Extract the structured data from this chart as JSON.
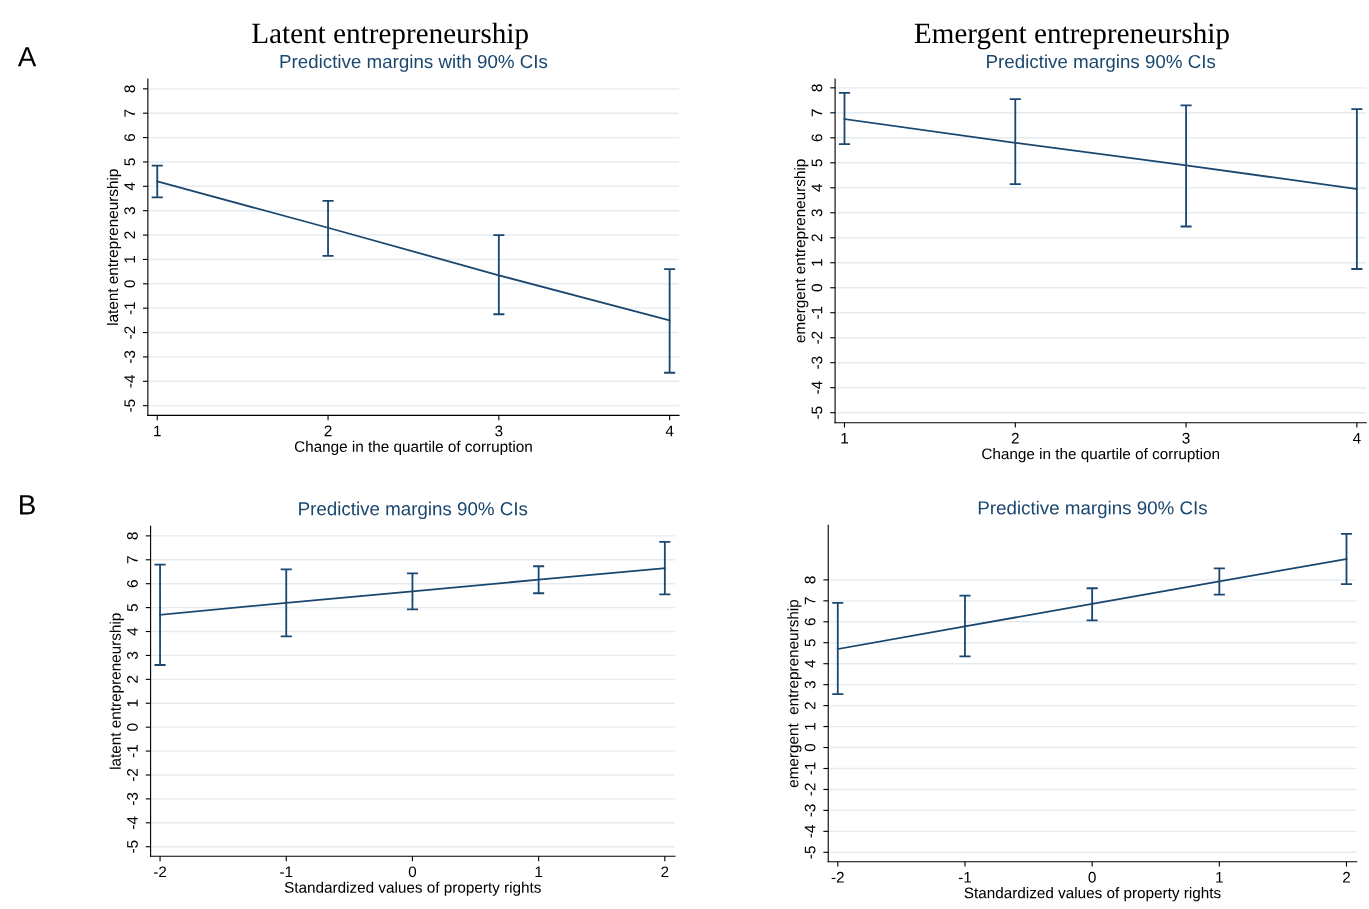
{
  "chart_data": [
    {
      "type": "line",
      "title": "Predictive margins with 90% CIs",
      "xlabel": "Change in the quartile of corruption",
      "ylabel": "latent entrepreneurship",
      "annotations": [
        "Latent entrepreneurship",
        "A"
      ],
      "x": [
        1,
        2,
        3,
        4
      ],
      "xlim": [
        0.945,
        4.055
      ],
      "xticks": [
        1,
        2,
        3,
        4
      ],
      "ylim": [
        -5.4,
        8.4
      ],
      "yticks": [
        -5,
        -4,
        -3,
        -2,
        -1,
        0,
        1,
        2,
        3,
        4,
        5,
        6,
        7,
        8
      ],
      "grid": "y",
      "marker": "none",
      "line_style": "solid",
      "series": [
        {
          "color": "#1a476f",
          "values": [
            4.2,
            2.3,
            0.35,
            -1.5
          ],
          "errors": [
            [
              3.55,
              4.85
            ],
            [
              1.15,
              3.4
            ],
            [
              -1.25,
              2.0
            ],
            [
              -3.65,
              0.6
            ]
          ]
        }
      ]
    },
    {
      "type": "line",
      "title": "Predictive margins 90% CIs",
      "xlabel": "Change in the quartile of corruption",
      "ylabel": "emergent entrepreneurship",
      "annotations": [
        "Emergent entrepreneurship"
      ],
      "x": [
        1,
        2,
        3,
        4
      ],
      "xlim": [
        0.945,
        4.055
      ],
      "xticks": [
        1,
        2,
        3,
        4
      ],
      "ylim": [
        -5.4,
        8.35
      ],
      "yticks": [
        -5,
        -4,
        -3,
        -2,
        -1,
        0,
        1,
        2,
        3,
        4,
        5,
        6,
        7,
        8
      ],
      "grid": "y",
      "marker": "none",
      "line_style": "solid",
      "series": [
        {
          "color": "#1a476f",
          "values": [
            6.75,
            5.8,
            4.9,
            3.95
          ],
          "errors": [
            [
              5.75,
              7.8
            ],
            [
              4.15,
              7.55
            ],
            [
              2.45,
              7.3
            ],
            [
              0.75,
              7.15
            ]
          ]
        }
      ]
    },
    {
      "type": "line",
      "title": "Predictive margins 90% CIs",
      "xlabel": "Standardized values of property rights",
      "ylabel": "latent entrepreneurship",
      "annotations": [
        "B"
      ],
      "x": [
        -2,
        -1,
        0,
        1,
        2
      ],
      "xlim": [
        -2.075,
        2.08
      ],
      "xticks": [
        -2,
        -1,
        0,
        1,
        2
      ],
      "ylim": [
        -5.4,
        8.4
      ],
      "yticks": [
        -5,
        -4,
        -3,
        -2,
        -1,
        0,
        1,
        2,
        3,
        4,
        5,
        6,
        7,
        8
      ],
      "grid": "y",
      "marker": "none",
      "line_style": "solid",
      "series": [
        {
          "color": "#1a476f",
          "values": [
            4.7,
            5.2,
            5.68,
            6.17,
            6.65
          ],
          "errors": [
            [
              2.6,
              6.8
            ],
            [
              3.8,
              6.6
            ],
            [
              4.93,
              6.43
            ],
            [
              5.6,
              6.73
            ],
            [
              5.55,
              7.75
            ]
          ]
        }
      ]
    },
    {
      "type": "line",
      "title": "Predictive margins 90% CIs",
      "xlabel": "Standardized values of property rights",
      "ylabel": "emergent  entrepreneurship",
      "x": [
        -2,
        -1,
        0,
        1,
        2
      ],
      "xlim": [
        -2.075,
        2.08
      ],
      "xticks": [
        -2,
        -1,
        0,
        1,
        2
      ],
      "ylim": [
        -5.45,
        10.6
      ],
      "yticks": [
        -5,
        -4,
        -3,
        -2,
        -1,
        0,
        1,
        2,
        3,
        4,
        5,
        6,
        7,
        8
      ],
      "grid": "y",
      "marker": "none",
      "line_style": "solid",
      "series": [
        {
          "color": "#1a476f",
          "values": [
            4.7,
            5.78,
            6.86,
            7.93,
            9.0
          ],
          "errors": [
            [
              2.55,
              6.9
            ],
            [
              4.35,
              7.25
            ],
            [
              6.07,
              7.6
            ],
            [
              7.3,
              8.55
            ],
            [
              7.8,
              10.2
            ]
          ]
        }
      ]
    }
  ]
}
